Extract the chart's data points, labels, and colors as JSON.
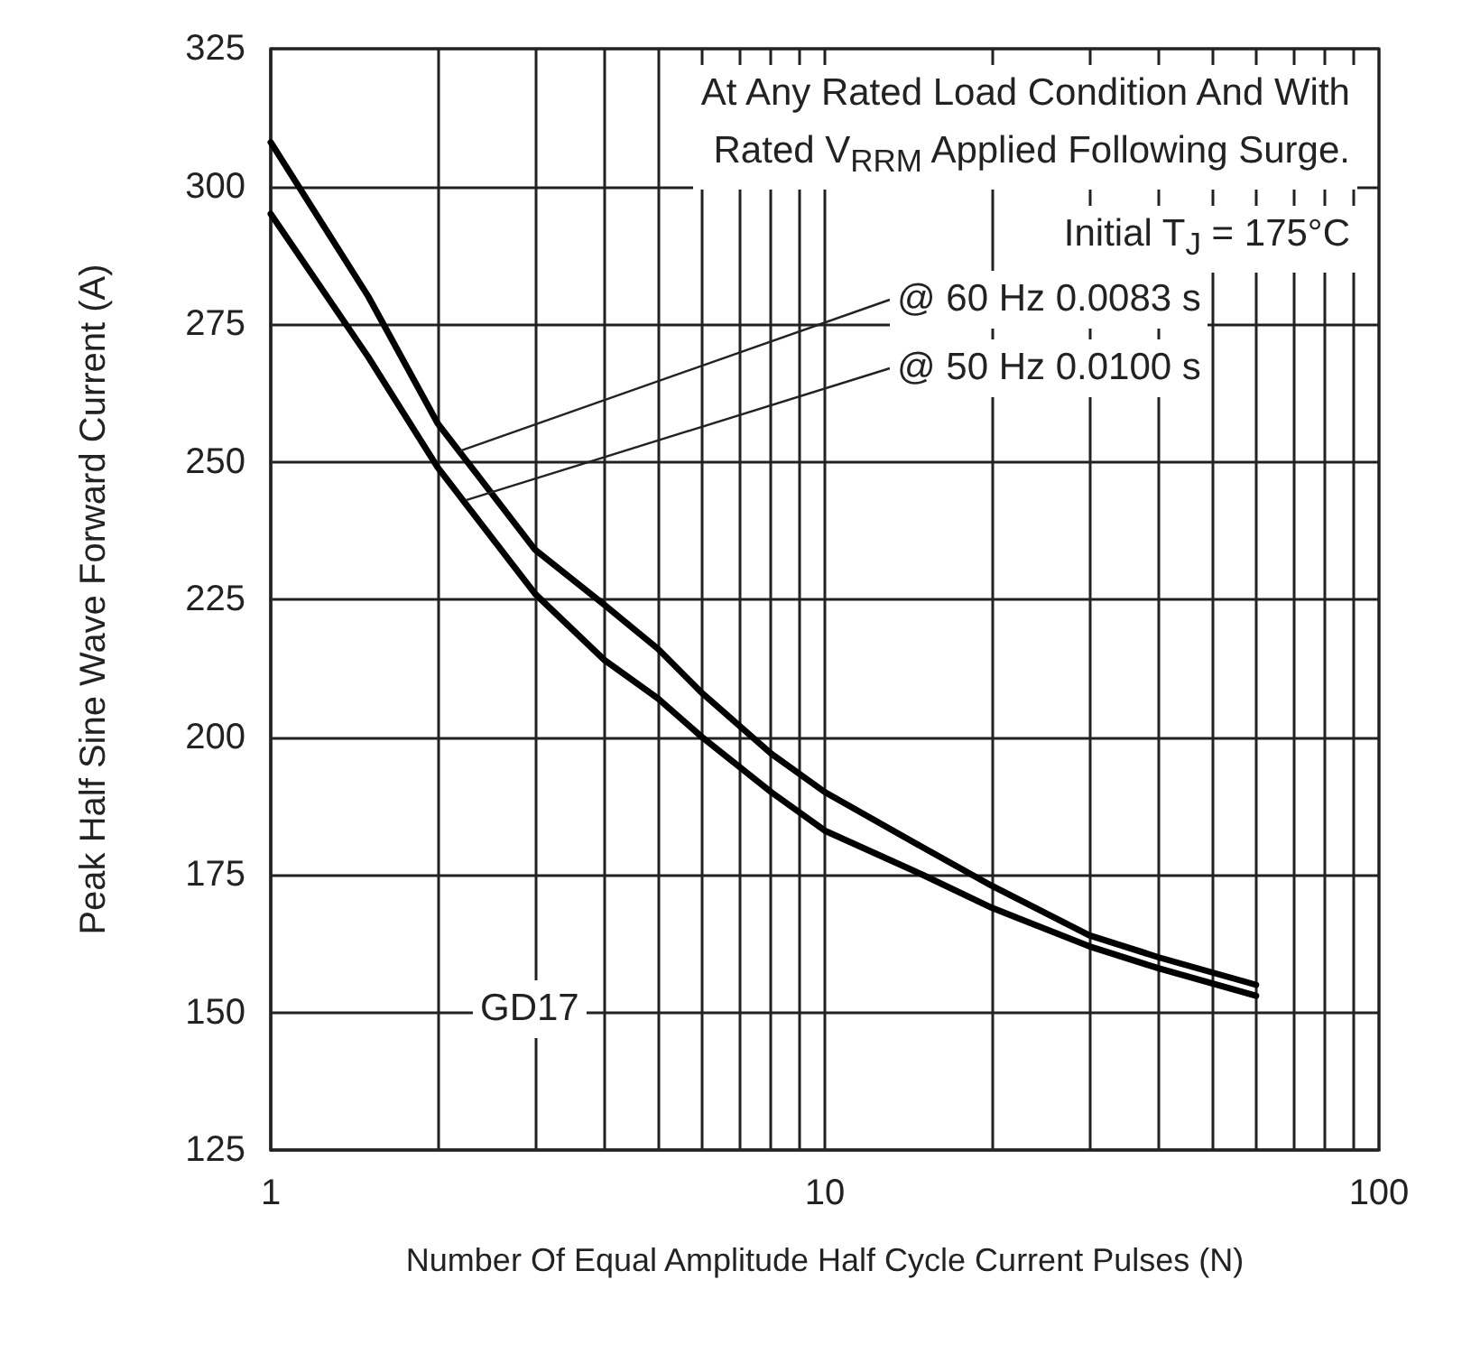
{
  "chart_data": {
    "type": "line",
    "xlabel": "Number Of Equal Amplitude Half Cycle Current Pulses (N)",
    "ylabel": "Peak Half Sine Wave Forward Current (A)",
    "log": "x",
    "xlim": [
      1,
      100
    ],
    "xticks": [
      1,
      {
        "value": 2,
        "label": null
      },
      {
        "value": 3,
        "label": null
      },
      {
        "value": 4,
        "label": null
      },
      {
        "value": 5,
        "label": null
      },
      {
        "value": 6,
        "label": null
      },
      {
        "value": 7,
        "label": null
      },
      {
        "value": 8,
        "label": null
      },
      {
        "value": 9,
        "label": null
      },
      10,
      {
        "value": 20,
        "label": null
      },
      {
        "value": 30,
        "label": null
      },
      {
        "value": 40,
        "label": null
      },
      {
        "value": 50,
        "label": null
      },
      {
        "value": 60,
        "label": null
      },
      {
        "value": 70,
        "label": null
      },
      {
        "value": 80,
        "label": null
      },
      {
        "value": 90,
        "label": null
      },
      100
    ],
    "ylim": [
      125,
      325
    ],
    "yticks": [
      125,
      150,
      175,
      200,
      225,
      250,
      275,
      300,
      325
    ],
    "grid": true,
    "x": [
      1,
      1.5,
      2,
      3,
      4,
      5,
      6,
      8,
      10,
      15,
      20,
      30,
      40,
      60
    ],
    "series": [
      {
        "color": "#000000",
        "values": [
          308,
          280,
          257,
          234,
          224,
          216,
          208,
          197,
          190,
          180,
          173,
          164,
          160,
          155
        ]
      },
      {
        "color": "#000000",
        "values": [
          295,
          269,
          249,
          226,
          214,
          207,
          200,
          190,
          183,
          175,
          169,
          162,
          158,
          153
        ]
      }
    ],
    "annotations": [
      "At Any Rated Load Condition And With\nRated V$_{RRM}$ Applied Following Surge.",
      "Initial T$_{J}$ = 175°C",
      {
        "text": "@ 60 Hz 0.0083 s",
        "x": 2.2,
        "y": 252
      },
      {
        "text": "@ 50 Hz 0.0100 s",
        "x": 2.25,
        "y": 243
      },
      "GD17"
    ]
  }
}
